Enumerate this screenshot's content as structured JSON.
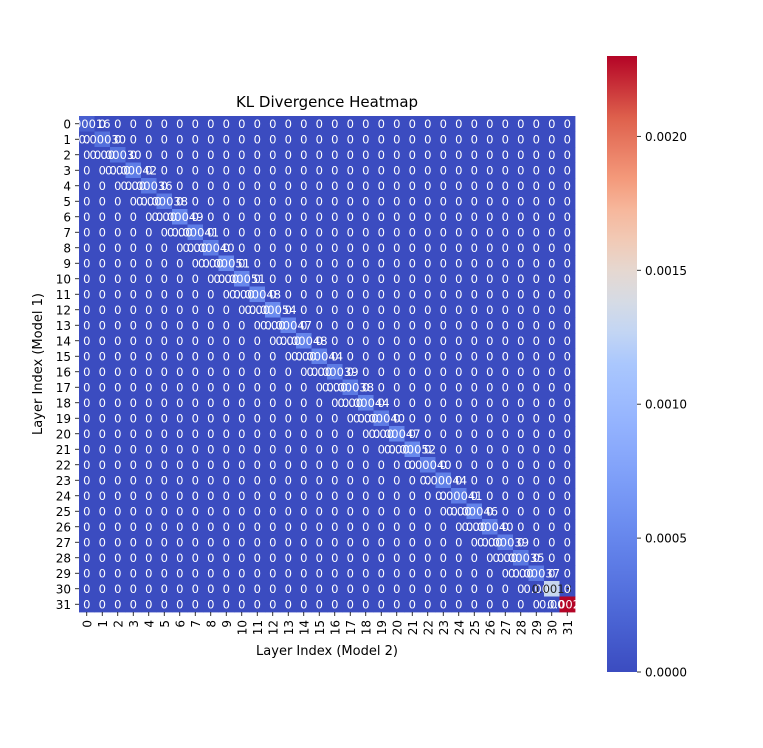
{
  "chart_data": {
    "type": "heatmap",
    "title": "KL Divergence Heatmap",
    "xlabel": "Layer Index (Model 2)",
    "ylabel": "Layer Index (Model 1)",
    "rows": [
      "0",
      "1",
      "2",
      "3",
      "4",
      "5",
      "6",
      "7",
      "8",
      "9",
      "10",
      "11",
      "12",
      "13",
      "14",
      "15",
      "16",
      "17",
      "18",
      "19",
      "20",
      "21",
      "22",
      "23",
      "24",
      "25",
      "26",
      "27",
      "28",
      "29",
      "30",
      "31"
    ],
    "cols": [
      "0",
      "1",
      "2",
      "3",
      "4",
      "5",
      "6",
      "7",
      "8",
      "9",
      "10",
      "11",
      "12",
      "13",
      "14",
      "15",
      "16",
      "17",
      "18",
      "19",
      "20",
      "21",
      "22",
      "23",
      "24",
      "25",
      "26",
      "27",
      "28",
      "29",
      "30",
      "31"
    ],
    "colormap": "coolwarm",
    "vmin": 0,
    "vmax": 0.0023,
    "colorbar_ticks": [
      0.0,
      0.0005,
      0.001,
      0.0015,
      0.002
    ],
    "colorbar_tick_labels": [
      "0.0000",
      "0.0005",
      "0.0010",
      "0.0015",
      "0.0020"
    ],
    "diagonal_values": [
      0.00016,
      0.0003,
      0.0003,
      0.00042,
      0.00036,
      0.00038,
      0.00049,
      0.00041,
      0.0004,
      0.00051,
      0.00051,
      0.00048,
      0.00054,
      0.00047,
      0.00048,
      0.00044,
      0.00039,
      0.00038,
      0.00044,
      0.0004,
      0.00047,
      0.00052,
      0.0004,
      0.00044,
      0.00041,
      0.00046,
      0.0004,
      0.00039,
      0.00035,
      0.00037,
      0.0013,
      0.0023
    ],
    "annotated_cells": [
      {
        "row": 0,
        "col": 0,
        "text": "0.00016"
      },
      {
        "row": 1,
        "col": 0,
        "text": "0"
      },
      {
        "row": 1,
        "col": 1,
        "text": "0.00030"
      },
      {
        "row": 2,
        "col": 1,
        "text": "0.00"
      },
      {
        "row": 2,
        "col": 2,
        "text": "0.00030"
      },
      {
        "row": 3,
        "col": 2,
        "text": "0.00"
      },
      {
        "row": 3,
        "col": 3,
        "text": "0.00042"
      },
      {
        "row": 4,
        "col": 3,
        "text": "0.00"
      },
      {
        "row": 4,
        "col": 4,
        "text": "0.00036"
      },
      {
        "row": 5,
        "col": 4,
        "text": "0.00"
      },
      {
        "row": 5,
        "col": 5,
        "text": "0.00038"
      },
      {
        "row": 6,
        "col": 5,
        "text": "0.00"
      },
      {
        "row": 6,
        "col": 6,
        "text": "0.00049"
      },
      {
        "row": 7,
        "col": 6,
        "text": "0.00"
      },
      {
        "row": 7,
        "col": 7,
        "text": "0.00041"
      },
      {
        "row": 8,
        "col": 7,
        "text": "0.00"
      },
      {
        "row": 8,
        "col": 8,
        "text": "0.00040"
      },
      {
        "row": 9,
        "col": 8,
        "text": "0.00"
      },
      {
        "row": 9,
        "col": 9,
        "text": "0.00051"
      },
      {
        "row": 10,
        "col": 9,
        "text": "0.00"
      },
      {
        "row": 10,
        "col": 10,
        "text": "0.00051"
      },
      {
        "row": 11,
        "col": 10,
        "text": "0.00"
      },
      {
        "row": 11,
        "col": 11,
        "text": "0.00048"
      },
      {
        "row": 12,
        "col": 11,
        "text": "0.00"
      },
      {
        "row": 12,
        "col": 12,
        "text": "0.00054"
      },
      {
        "row": 13,
        "col": 12,
        "text": "0.00"
      },
      {
        "row": 13,
        "col": 13,
        "text": "0.00047"
      },
      {
        "row": 14,
        "col": 13,
        "text": "0.00"
      },
      {
        "row": 14,
        "col": 14,
        "text": "0.00048"
      },
      {
        "row": 15,
        "col": 14,
        "text": "0.00"
      },
      {
        "row": 15,
        "col": 15,
        "text": "0.00044"
      },
      {
        "row": 16,
        "col": 15,
        "text": "0.00"
      },
      {
        "row": 16,
        "col": 16,
        "text": "0.00039"
      },
      {
        "row": 17,
        "col": 16,
        "text": "0.00"
      },
      {
        "row": 17,
        "col": 17,
        "text": "0.00038"
      },
      {
        "row": 18,
        "col": 17,
        "text": "0.00"
      },
      {
        "row": 18,
        "col": 18,
        "text": "0.00044"
      },
      {
        "row": 19,
        "col": 18,
        "text": "0.00"
      },
      {
        "row": 19,
        "col": 19,
        "text": "0.00040"
      },
      {
        "row": 20,
        "col": 19,
        "text": "0.00"
      },
      {
        "row": 20,
        "col": 20,
        "text": "0.00047"
      },
      {
        "row": 21,
        "col": 20,
        "text": "0.00"
      },
      {
        "row": 21,
        "col": 21,
        "text": "0.00052"
      },
      {
        "row": 22,
        "col": 21,
        "text": "0"
      },
      {
        "row": 22,
        "col": 22,
        "text": "0.00040"
      },
      {
        "row": 23,
        "col": 22,
        "text": "0"
      },
      {
        "row": 23,
        "col": 23,
        "text": "0.00044"
      },
      {
        "row": 24,
        "col": 23,
        "text": "0"
      },
      {
        "row": 24,
        "col": 24,
        "text": "0.00041"
      },
      {
        "row": 25,
        "col": 24,
        "text": "0.00"
      },
      {
        "row": 25,
        "col": 25,
        "text": "0.00046"
      },
      {
        "row": 26,
        "col": 25,
        "text": "0.00"
      },
      {
        "row": 26,
        "col": 26,
        "text": "0.00040"
      },
      {
        "row": 27,
        "col": 26,
        "text": "0.00"
      },
      {
        "row": 27,
        "col": 27,
        "text": "0.00039"
      },
      {
        "row": 28,
        "col": 27,
        "text": "0.00"
      },
      {
        "row": 28,
        "col": 28,
        "text": "0.00035"
      },
      {
        "row": 29,
        "col": 28,
        "text": "0.00"
      },
      {
        "row": 29,
        "col": 29,
        "text": "0.00037"
      },
      {
        "row": 30,
        "col": 29,
        "text": "0.00"
      },
      {
        "row": 30,
        "col": 30,
        "text": "0.0013"
      },
      {
        "row": 31,
        "col": 30,
        "text": "0.00"
      },
      {
        "row": 31,
        "col": 31,
        "text": "0.0023"
      }
    ],
    "default_cell_text": "0",
    "default_cell_value": 0
  }
}
